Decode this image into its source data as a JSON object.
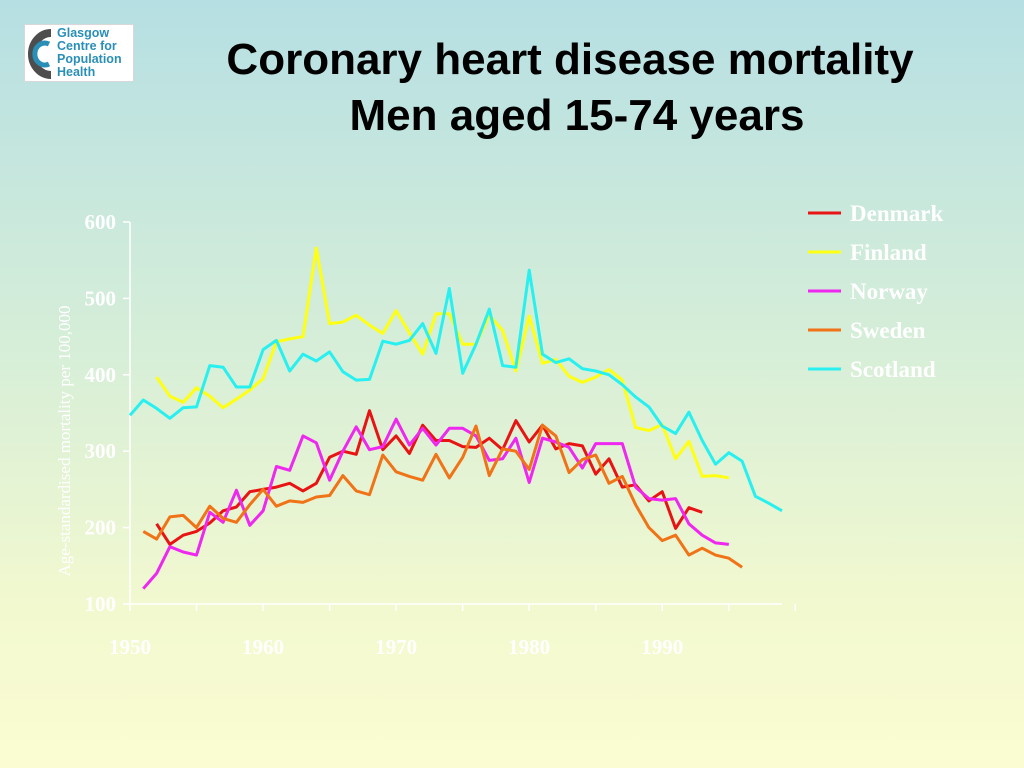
{
  "logo": {
    "lines": [
      "Glasgow",
      "Centre for",
      "Population",
      "Health"
    ],
    "mark_color": "#4d4d4d",
    "text_color": "#2a8fb7"
  },
  "title": {
    "line1": "Coronary heart disease mortality",
    "line2": "Men aged 15-74 years"
  },
  "chart_data": {
    "type": "line",
    "title": "Coronary heart disease mortality Men aged 15-74 years",
    "xlabel": "",
    "ylabel": "Age-standardised mortality per 100,000",
    "xlim": [
      1950,
      1999
    ],
    "ylim": [
      100,
      600
    ],
    "xticks": [
      1950,
      1960,
      1970,
      1980,
      1990
    ],
    "yticks": [
      100,
      200,
      300,
      400,
      500,
      600
    ],
    "grid": false,
    "legend_position": "top-right",
    "series": [
      {
        "name": "Denmark",
        "color": "#e81414",
        "x": [
          1952,
          1953,
          1954,
          1955,
          1956,
          1957,
          1958,
          1959,
          1960,
          1961,
          1962,
          1963,
          1964,
          1965,
          1966,
          1967,
          1968,
          1969,
          1970,
          1971,
          1972,
          1973,
          1974,
          1975,
          1976,
          1977,
          1978,
          1979,
          1980,
          1981,
          1982,
          1983,
          1984,
          1985,
          1986,
          1987,
          1988,
          1989,
          1990,
          1991,
          1992,
          1993
        ],
        "y": [
          205,
          178,
          190,
          195,
          206,
          222,
          227,
          247,
          250,
          253,
          258,
          248,
          258,
          292,
          300,
          296,
          353,
          302,
          320,
          297,
          334,
          314,
          314,
          306,
          305,
          317,
          302,
          340,
          312,
          334,
          303,
          310,
          307,
          270,
          290,
          253,
          256,
          235,
          247,
          199,
          226,
          220
        ]
      },
      {
        "name": "Finland",
        "color": "#ffff14",
        "x": [
          1952,
          1953,
          1954,
          1955,
          1956,
          1957,
          1958,
          1959,
          1960,
          1961,
          1962,
          1963,
          1964,
          1965,
          1966,
          1967,
          1968,
          1969,
          1970,
          1971,
          1972,
          1973,
          1974,
          1975,
          1976,
          1977,
          1978,
          1979,
          1980,
          1981,
          1982,
          1983,
          1984,
          1985,
          1986,
          1987,
          1988,
          1989,
          1990,
          1991,
          1992,
          1993,
          1994,
          1995
        ],
        "y": [
          397,
          372,
          364,
          383,
          372,
          357,
          368,
          380,
          395,
          443,
          447,
          450,
          566,
          467,
          469,
          478,
          465,
          454,
          484,
          455,
          427,
          480,
          480,
          440,
          440,
          478,
          458,
          405,
          477,
          415,
          420,
          398,
          390,
          397,
          407,
          393,
          331,
          327,
          335,
          290,
          313,
          267,
          268,
          265
        ]
      },
      {
        "name": "Norway",
        "color": "#ee28ee",
        "x": [
          1951,
          1952,
          1953,
          1954,
          1955,
          1956,
          1957,
          1958,
          1959,
          1960,
          1961,
          1962,
          1963,
          1964,
          1965,
          1966,
          1967,
          1968,
          1969,
          1970,
          1971,
          1972,
          1973,
          1974,
          1975,
          1976,
          1977,
          1978,
          1979,
          1980,
          1981,
          1982,
          1983,
          1984,
          1985,
          1986,
          1987,
          1988,
          1989,
          1990,
          1991,
          1992,
          1993,
          1994,
          1995
        ],
        "y": [
          120,
          140,
          175,
          168,
          164,
          220,
          207,
          249,
          203,
          222,
          280,
          275,
          320,
          311,
          262,
          300,
          332,
          302,
          306,
          342,
          308,
          330,
          308,
          330,
          330,
          320,
          288,
          290,
          317,
          259,
          317,
          312,
          305,
          278,
          310,
          310,
          310,
          253,
          238,
          236,
          238,
          205,
          190,
          180,
          178
        ]
      },
      {
        "name": "Sweden",
        "color": "#f07318",
        "x": [
          1951,
          1952,
          1953,
          1954,
          1955,
          1956,
          1957,
          1958,
          1959,
          1960,
          1961,
          1962,
          1963,
          1964,
          1965,
          1966,
          1967,
          1968,
          1969,
          1970,
          1971,
          1972,
          1973,
          1974,
          1975,
          1976,
          1977,
          1978,
          1979,
          1980,
          1981,
          1982,
          1983,
          1984,
          1985,
          1986,
          1987,
          1988,
          1989,
          1990,
          1991,
          1992,
          1993,
          1994,
          1995,
          1996
        ],
        "y": [
          195,
          185,
          214,
          216,
          200,
          228,
          212,
          207,
          230,
          250,
          228,
          235,
          233,
          240,
          242,
          268,
          248,
          243,
          295,
          273,
          267,
          262,
          296,
          265,
          292,
          333,
          268,
          303,
          300,
          276,
          334,
          320,
          272,
          289,
          295,
          258,
          267,
          230,
          200,
          183,
          190,
          164,
          173,
          164,
          160,
          148
        ]
      },
      {
        "name": "Scotland",
        "color": "#28f0f0",
        "x": [
          1950,
          1951,
          1952,
          1953,
          1954,
          1955,
          1956,
          1957,
          1958,
          1959,
          1960,
          1961,
          1962,
          1963,
          1964,
          1965,
          1966,
          1967,
          1968,
          1969,
          1970,
          1971,
          1972,
          1973,
          1974,
          1975,
          1976,
          1977,
          1978,
          1979,
          1980,
          1981,
          1982,
          1983,
          1984,
          1985,
          1986,
          1987,
          1988,
          1989,
          1990,
          1991,
          1992,
          1993,
          1994,
          1995,
          1996,
          1997,
          1998,
          1999
        ],
        "y": [
          347,
          367,
          356,
          343,
          357,
          358,
          412,
          410,
          384,
          384,
          433,
          445,
          405,
          427,
          418,
          430,
          404,
          393,
          394,
          444,
          440,
          445,
          467,
          428,
          513,
          402,
          440,
          486,
          412,
          410,
          537,
          427,
          416,
          421,
          408,
          405,
          400,
          387,
          371,
          358,
          333,
          323,
          351,
          314,
          283,
          298,
          287,
          241,
          232,
          222
        ]
      }
    ]
  }
}
